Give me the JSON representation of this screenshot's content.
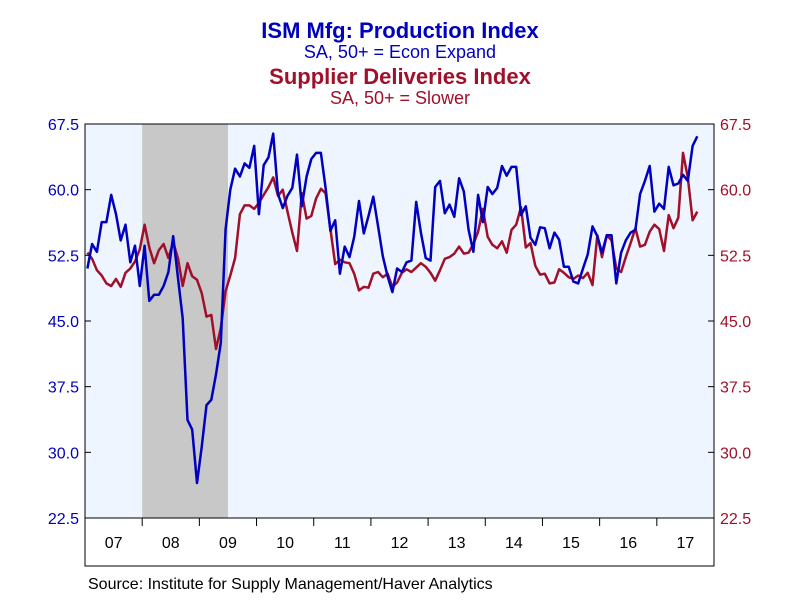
{
  "chart_data": {
    "type": "line",
    "title": "ISM Mfg: Production Index",
    "subtitle": "SA, 50+ = Econ Expand",
    "title2": "Supplier Deliveries Index",
    "subtitle2": "SA, 50+ = Slower",
    "source": "Source:  Institute for Supply Management/Haver Analytics",
    "x_start": "2007-01",
    "x_end": "2017-12",
    "x_ticks": [
      "07",
      "08",
      "09",
      "10",
      "11",
      "12",
      "13",
      "14",
      "15",
      "16",
      "17"
    ],
    "y_left_ticks": [
      "67.5",
      "60.0",
      "52.5",
      "45.0",
      "37.5",
      "30.0",
      "22.5"
    ],
    "y_right_ticks": [
      "67.5",
      "60.0",
      "52.5",
      "45.0",
      "37.5",
      "30.0",
      "22.5"
    ],
    "ylim": [
      22.5,
      67.5
    ],
    "grid": false,
    "recession": {
      "start": "2008-01",
      "end": "2009-06"
    },
    "colors": {
      "production": "#0000c0",
      "deliveries": "#a0102a",
      "plot_bg": "#eef5ff",
      "recession": "#c8c8c8"
    },
    "series": [
      {
        "name": "ISM Mfg: Production Index",
        "axis": "left",
        "values": [
          51.0,
          53.8,
          52.9,
          56.3,
          56.3,
          59.4,
          57.2,
          54.2,
          56.0,
          51.7,
          53.6,
          49.0,
          53.6,
          47.3,
          48.0,
          48.0,
          49.0,
          50.6,
          54.7,
          50.0,
          45.3,
          33.7,
          32.6,
          26.5,
          30.6,
          35.4,
          36.0,
          38.9,
          42.5,
          55.5,
          60.0,
          62.4,
          61.5,
          63.0,
          62.5,
          65.0,
          57.2,
          62.8,
          63.7,
          66.4,
          59.5,
          57.9,
          59.3,
          60.2,
          64.0,
          58.1,
          61.5,
          63.5,
          64.2,
          64.2,
          60.2,
          55.3,
          56.5,
          50.4,
          53.5,
          52.3,
          54.6,
          58.7,
          55.0,
          57.0,
          59.2,
          55.8,
          52.4,
          50.1,
          48.3,
          51.0,
          50.6,
          51.7,
          51.9,
          58.6,
          55.1,
          52.2,
          51.9,
          60.3,
          61.0,
          57.3,
          58.3,
          56.9,
          61.3,
          59.8,
          55.4,
          52.9,
          59.4,
          56.3,
          60.3,
          59.5,
          60.2,
          62.7,
          61.6,
          62.6,
          62.6,
          57.1,
          58.1,
          54.5,
          53.7,
          55.7,
          55.6,
          53.3,
          55.1,
          54.3,
          51.2,
          51.2,
          49.5,
          49.3,
          51.0,
          52.6,
          55.8,
          54.7,
          52.8,
          54.8,
          54.8,
          49.3,
          52.8,
          54.2,
          55.1,
          55.4,
          59.5,
          61.0,
          62.7,
          57.5,
          58.4,
          57.8,
          62.6,
          60.5,
          60.7,
          61.7,
          61.0,
          65.0,
          66.1
        ]
      },
      {
        "name": "Supplier Deliveries Index",
        "axis": "left",
        "values": [
          52.8,
          52.1,
          50.8,
          50.2,
          49.3,
          49.0,
          49.8,
          48.9,
          50.5,
          51.0,
          51.8,
          53.2,
          56.0,
          53.4,
          51.6,
          53.1,
          53.8,
          52.2,
          54.0,
          52.2,
          49.0,
          51.6,
          50.1,
          49.7,
          48.2,
          45.5,
          45.7,
          41.8,
          44.2,
          48.4,
          50.2,
          52.2,
          57.2,
          58.2,
          58.2,
          57.8,
          58.5,
          59.4,
          60.3,
          61.4,
          59.3,
          60.0,
          57.5,
          55.1,
          53.0,
          59.6,
          56.7,
          57.0,
          59.0,
          60.1,
          59.6,
          55.5,
          51.5,
          52.0,
          51.7,
          51.6,
          50.4,
          48.5,
          48.9,
          48.8,
          50.4,
          50.6,
          50.0,
          50.4,
          48.9,
          49.4,
          50.5,
          50.9,
          50.6,
          51.1,
          51.6,
          51.2,
          50.5,
          49.6,
          50.8,
          52.1,
          52.3,
          52.7,
          53.5,
          52.7,
          52.8,
          53.8,
          55.2,
          57.8,
          54.6,
          53.7,
          53.3,
          54.1,
          52.8,
          55.4,
          56.0,
          58.0,
          53.4,
          53.9,
          51.3,
          50.3,
          50.4,
          49.3,
          49.4,
          50.9,
          50.5,
          50.0,
          49.8,
          50.2,
          49.9,
          50.5,
          49.1,
          54.8,
          52.3,
          54.8,
          54.2,
          51.0,
          50.6,
          52.3,
          53.9,
          55.6,
          53.5,
          53.7,
          55.2,
          56.0,
          55.5,
          53.0,
          57.1,
          55.6,
          56.8,
          64.2,
          61.4,
          56.5,
          57.5
        ]
      }
    ]
  }
}
